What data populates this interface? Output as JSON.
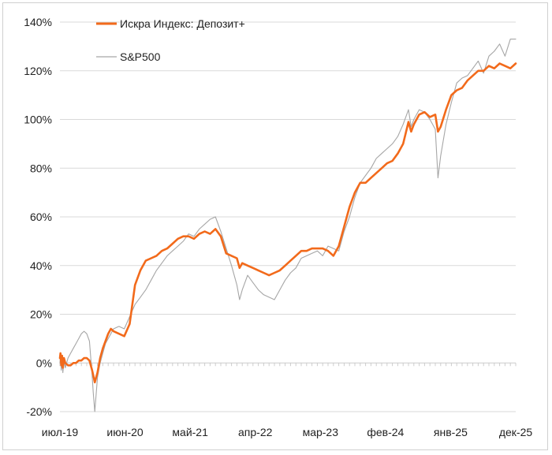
{
  "chart_data": {
    "type": "line",
    "title": "",
    "xlabel": "",
    "ylabel": "",
    "ylim": [
      -20,
      140
    ],
    "y_ticks": [
      -20,
      0,
      20,
      40,
      60,
      80,
      100,
      120,
      140
    ],
    "y_tick_labels": [
      "-20%",
      "0%",
      "20%",
      "40%",
      "60%",
      "80%",
      "100%",
      "120%",
      "140%"
    ],
    "x_tick_labels": [
      "июл-19",
      "июн-20",
      "май-21",
      "апр-22",
      "мар-23",
      "фев-24",
      "янв-25",
      "дек-25"
    ],
    "grid": "horizontal",
    "legend": "top-left",
    "series": [
      {
        "name": "Искра Индекс: Депозит+",
        "color": "#f26a1b",
        "x": [
          0,
          0.1,
          0.25,
          0.4,
          0.55,
          0.75,
          1,
          1.5,
          2,
          2.5,
          3,
          3.5,
          4,
          4.5,
          5,
          5.5,
          6,
          6.2,
          6.5,
          7,
          7.5,
          8,
          8.5,
          9,
          9.5,
          10,
          11,
          12,
          13,
          14,
          15,
          16,
          17,
          18,
          19,
          20,
          21,
          22,
          23,
          24,
          25,
          26,
          27,
          28,
          29,
          30,
          31,
          32,
          33,
          33.5,
          34,
          35,
          36,
          37,
          38,
          39,
          40,
          41,
          42,
          43,
          44,
          45,
          46,
          47,
          48,
          49,
          50,
          51,
          52,
          53,
          54,
          55,
          56,
          57,
          58,
          59,
          60,
          61,
          62,
          63,
          64,
          65,
          65.5,
          66,
          67,
          68,
          69,
          70,
          70.5,
          71,
          72,
          73,
          74,
          75,
          76,
          77,
          78,
          79,
          80,
          81,
          82,
          83,
          84,
          85
        ],
        "y": [
          2,
          4,
          -1,
          3,
          -2,
          2,
          0,
          -1,
          -1,
          0,
          0,
          1,
          1,
          2,
          2,
          1,
          -3,
          -5,
          -8,
          -4,
          2,
          6,
          9,
          12,
          14,
          13,
          12,
          11,
          16,
          32,
          38,
          42,
          43,
          44,
          46,
          47,
          49,
          51,
          52,
          52,
          51,
          53,
          54,
          53,
          55,
          52,
          45,
          44,
          43,
          39,
          41,
          40,
          39,
          38,
          37,
          36,
          37,
          38,
          40,
          42,
          44,
          46,
          46,
          47,
          47,
          47,
          46,
          44,
          48,
          56,
          64,
          70,
          74,
          74,
          76,
          78,
          80,
          82,
          83,
          86,
          90,
          99,
          95,
          98,
          102,
          103,
          101,
          102,
          95,
          97,
          104,
          110,
          112,
          113,
          116,
          118,
          120,
          120,
          122,
          121,
          123,
          122,
          121,
          123
        ]
      },
      {
        "name": "S&P500",
        "color": "#a6a6a6",
        "x": [
          0,
          0.1,
          0.25,
          0.4,
          0.55,
          0.75,
          1,
          1.5,
          2,
          2.5,
          3,
          3.5,
          4,
          4.5,
          5,
          5.5,
          6,
          6.2,
          6.5,
          7,
          7.5,
          8,
          8.5,
          9,
          9.5,
          10,
          11,
          12,
          13,
          14,
          15,
          16,
          17,
          18,
          19,
          20,
          21,
          22,
          23,
          24,
          25,
          26,
          27,
          28,
          29,
          30,
          31,
          32,
          33,
          33.5,
          34,
          35,
          36,
          37,
          38,
          39,
          40,
          41,
          42,
          43,
          44,
          45,
          46,
          47,
          48,
          49,
          50,
          51,
          52,
          53,
          54,
          55,
          56,
          57,
          58,
          59,
          60,
          61,
          62,
          63,
          64,
          65,
          65.5,
          66,
          67,
          68,
          69,
          70,
          70.5,
          71,
          72,
          73,
          74,
          75,
          76,
          77,
          78,
          79,
          80,
          81,
          82,
          83,
          84,
          85
        ],
        "y": [
          0,
          3,
          -3,
          2,
          -4,
          1,
          -2,
          2,
          4,
          6,
          8,
          10,
          12,
          13,
          12,
          9,
          -5,
          -12,
          -20,
          -6,
          0,
          4,
          8,
          10,
          12,
          14,
          15,
          14,
          19,
          24,
          27,
          30,
          34,
          38,
          41,
          44,
          46,
          48,
          50,
          53,
          52,
          55,
          57,
          59,
          60,
          54,
          47,
          40,
          32,
          26,
          30,
          36,
          33,
          30,
          28,
          27,
          26,
          30,
          34,
          37,
          39,
          43,
          44,
          45,
          46,
          44,
          48,
          47,
          46,
          54,
          60,
          68,
          74,
          77,
          80,
          84,
          86,
          88,
          90,
          93,
          98,
          104,
          97,
          100,
          104,
          103,
          100,
          96,
          76,
          85,
          98,
          107,
          115,
          117,
          118,
          121,
          124,
          119,
          126,
          128,
          131,
          126,
          133,
          133
        ]
      }
    ]
  }
}
